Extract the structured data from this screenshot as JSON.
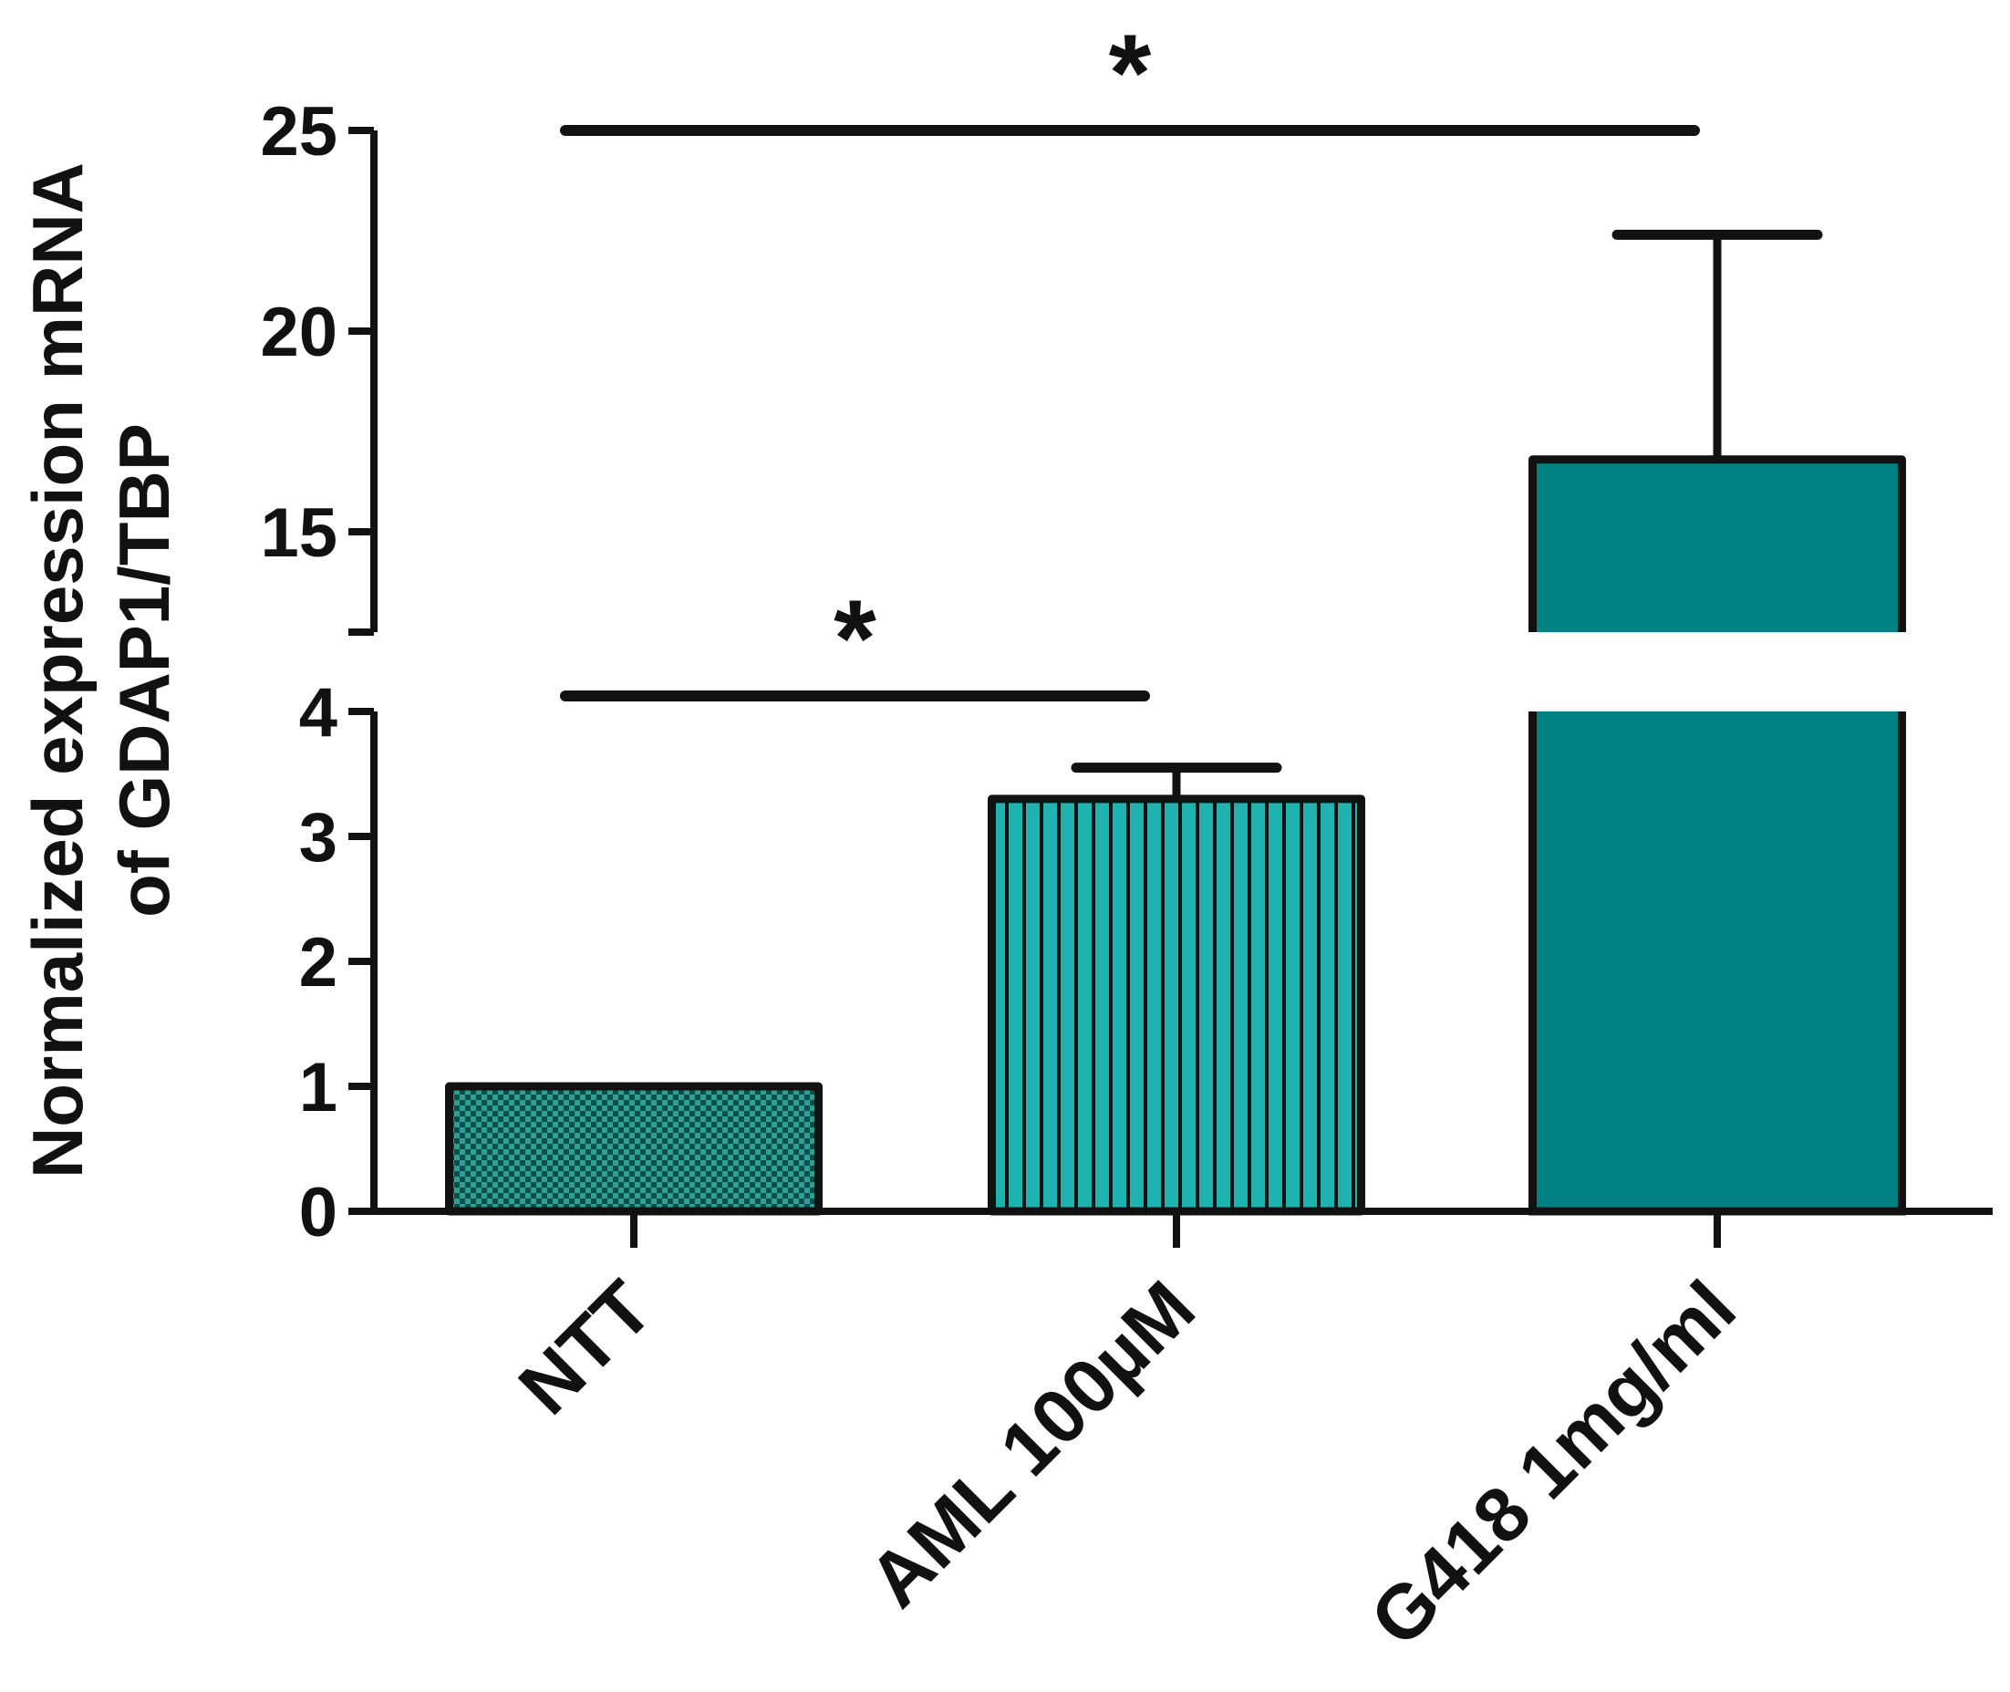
{
  "chart_data": {
    "type": "bar",
    "title": "",
    "ylabel_lines": [
      "Normalized expression mRNA",
      "of GDAP1/TBP"
    ],
    "xlabel": "",
    "categories": [
      "NTT",
      "AML 100µM",
      "G418 1mg/ml"
    ],
    "values": [
      1.0,
      3.3,
      16.8
    ],
    "errors": [
      0.0,
      0.25,
      5.6
    ],
    "y_axis_break": {
      "lower_range": [
        0,
        4
      ],
      "upper_range": [
        12.5,
        25
      ]
    },
    "lower_ticks": [
      0,
      1,
      2,
      3,
      4
    ],
    "lower_tick_labels": [
      "0",
      "1",
      "2",
      "3",
      "4"
    ],
    "upper_ticks": [
      15,
      20,
      25
    ],
    "upper_tick_labels": [
      "15",
      "20",
      "25"
    ],
    "bar_fills": [
      "checker-dark-teal",
      "vertical-stripe-teal",
      "solid-teal"
    ],
    "colors": {
      "teal": "#008080",
      "teal_light": "#1fb3b0",
      "teal_dark": "#0a4f49",
      "ink": "#111111"
    },
    "significance": [
      {
        "from": 0,
        "to": 1,
        "label": "*",
        "y": 4.1
      },
      {
        "from": 0,
        "to": 2,
        "label": "*",
        "y": 25
      }
    ],
    "grid": false,
    "legend": "none"
  }
}
